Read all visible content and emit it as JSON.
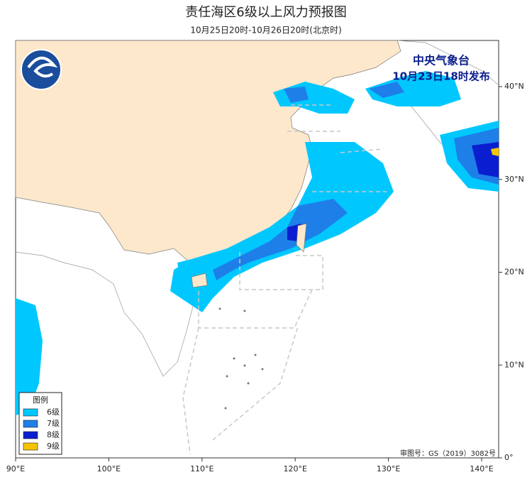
{
  "header": {
    "title": "责任海区6级以上风力预报图",
    "subtitle": "10月25日20时-10月26日20时(北京时)"
  },
  "issuer": {
    "agency": "中央气象台",
    "issued": "10月23日18时发布"
  },
  "legend": {
    "title": "图例",
    "items": [
      "6级",
      "7级",
      "8级",
      "9级"
    ]
  },
  "x_axis": {
    "labels": [
      "90°E",
      "100°E",
      "110°E",
      "120°E",
      "130°E",
      "140°E"
    ]
  },
  "y_axis": {
    "labels": [
      "0°",
      "10°N",
      "20°N",
      "30°N",
      "40°N"
    ]
  },
  "footer": {
    "review_number": "审图号：GS（2019）3082号"
  }
}
